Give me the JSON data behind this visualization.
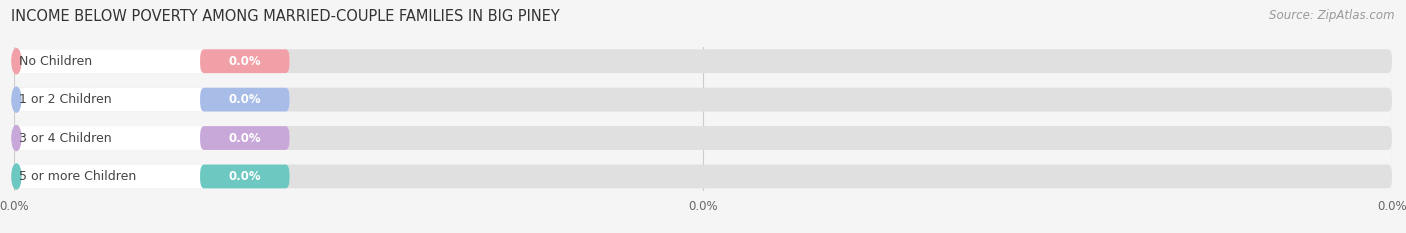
{
  "title": "INCOME BELOW POVERTY AMONG MARRIED-COUPLE FAMILIES IN BIG PINEY",
  "source": "Source: ZipAtlas.com",
  "categories": [
    "No Children",
    "1 or 2 Children",
    "3 or 4 Children",
    "5 or more Children"
  ],
  "values": [
    0.0,
    0.0,
    0.0,
    0.0
  ],
  "bar_colors": [
    "#f2a0a8",
    "#a8bce8",
    "#c8a8d8",
    "#6cc8c0"
  ],
  "background_color": "#f5f5f5",
  "bar_bg_color": "#e0e0e0",
  "white_pill_color": "#ffffff",
  "title_fontsize": 10.5,
  "source_fontsize": 8.5,
  "label_fontsize": 9,
  "value_fontsize": 8.5,
  "xlim_min": 0.0,
  "xlim_max": 100.0,
  "xtick_positions": [
    0,
    50,
    100
  ],
  "xtick_labels": [
    "0.0%",
    "0.0%",
    "0.0%"
  ]
}
